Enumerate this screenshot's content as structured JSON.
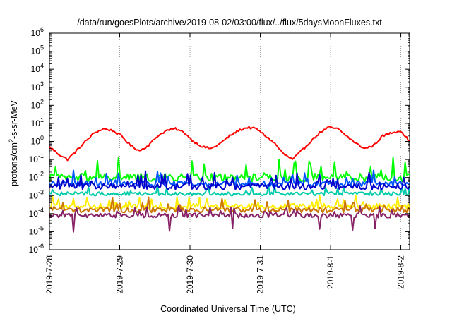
{
  "chart_data": {
    "type": "line",
    "title": "/data/run/goesPlots/archive/2019-08-02/03:00/flux/../flux/5daysMoonFluxes.txt",
    "xlabel": "Coordinated Universal Time (UTC)",
    "ylabel_main": "protons/cm",
    "ylabel_sup": "2",
    "ylabel_rest": "-s-sr-MeV",
    "y_scale": "log",
    "ylim": [
      1e-06,
      1000000.0
    ],
    "y_ticks": [
      {
        "base": "10",
        "exp": "-6"
      },
      {
        "base": "10",
        "exp": "-5"
      },
      {
        "base": "10",
        "exp": "-4"
      },
      {
        "base": "10",
        "exp": "-3"
      },
      {
        "base": "10",
        "exp": "-2"
      },
      {
        "base": "10",
        "exp": "-1"
      },
      {
        "base": "10",
        "exp": "0"
      },
      {
        "base": "10",
        "exp": "1"
      },
      {
        "base": "10",
        "exp": "2"
      },
      {
        "base": "10",
        "exp": "3"
      },
      {
        "base": "10",
        "exp": "4"
      },
      {
        "base": "10",
        "exp": "5"
      },
      {
        "base": "10",
        "exp": "6"
      }
    ],
    "xlim": [
      "2019-07-28",
      "2019-08-02 03:00"
    ],
    "x_ticks": [
      "2019-7-28",
      "2019-7-29",
      "2019-7-30",
      "2019-7-31",
      "2019-8-1",
      "2019-8-2"
    ],
    "grid": true,
    "legend": "none",
    "series": [
      {
        "color": "#ff0000",
        "base": -0.3,
        "amp": 0.95,
        "noise": 0.12,
        "values": [
          0.5,
          0.2,
          0.1,
          0.3,
          1.0,
          3.0,
          5.0,
          4.0,
          2.0,
          0.6,
          0.3,
          0.6,
          2.0,
          4.0,
          5.0,
          3.0,
          1.0,
          0.5,
          0.4,
          0.8,
          2.0,
          4.0,
          6.0,
          5.0,
          2.0,
          0.8,
          0.2,
          0.1,
          0.3,
          1.0,
          3.0,
          6.0,
          5.0,
          2.0,
          0.8,
          0.4,
          0.6,
          2.0,
          3.0,
          4.0,
          1.0
        ]
      },
      {
        "color": "#00ff00",
        "base": -2.0,
        "amp": 0.0,
        "noise": 0.45,
        "values": [
          0.01,
          0.05,
          0.08,
          0.01
        ]
      },
      {
        "color": "#00ccaa",
        "base": -2.9,
        "amp": 0.0,
        "noise": 0.2,
        "values": [
          0.001,
          0.002,
          0.001
        ]
      },
      {
        "color": "#0055ff",
        "base": -2.35,
        "amp": 0.0,
        "noise": 0.3,
        "values": [
          0.005,
          0.01,
          0.004
        ]
      },
      {
        "color": "#0000cc",
        "base": -2.5,
        "amp": 0.0,
        "noise": 0.35,
        "values": [
          0.003,
          0.006,
          0.002
        ]
      },
      {
        "color": "#ffee00",
        "base": -3.6,
        "amp": 0.0,
        "noise": 0.3,
        "values": [
          0.0002,
          0.0005,
          0.0003
        ]
      },
      {
        "color": "#cc7700",
        "base": -3.8,
        "amp": 0.0,
        "noise": 0.3,
        "values": [
          0.0001,
          0.0003,
          0.0002
        ]
      },
      {
        "color": "#882266",
        "base": -4.1,
        "amp": 0.0,
        "noise": 0.25,
        "values": [
          8e-05,
          0.0002,
          5e-05
        ]
      }
    ]
  }
}
